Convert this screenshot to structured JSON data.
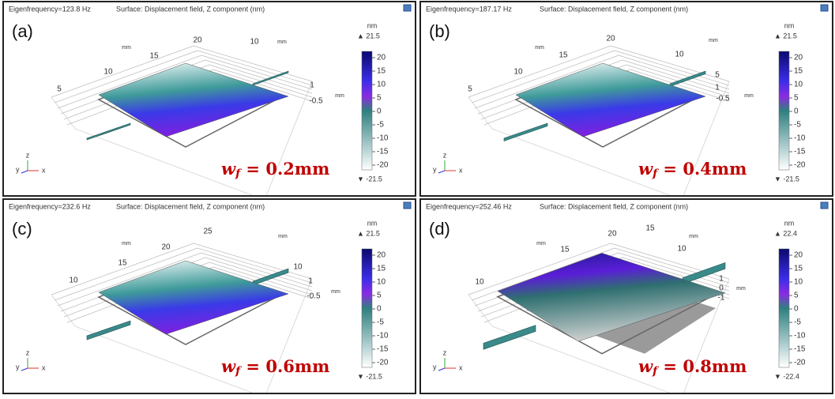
{
  "panels": [
    {
      "label": "(a)",
      "frequency": "Eigenfrequency=123.8 Hz",
      "surface": "Surface: Displacement field, Z component (nm)",
      "unit": "nm",
      "max": "▲ 21.5",
      "min": "▼ -21.5",
      "colorbar_ticks": [
        20,
        15,
        10,
        5,
        0,
        -5,
        -10,
        -15,
        -20
      ],
      "axis_labels": [
        "mm",
        "20",
        "15",
        "10",
        "5",
        "10",
        "mm",
        "1",
        "-0.5",
        "mm"
      ],
      "formula": {
        "var": "w",
        "sub": "f",
        "rest": " = 0.2mm"
      }
    },
    {
      "label": "(b)",
      "frequency": "Eigenfrequency=187.17 Hz",
      "surface": "Surface: Displacement field, Z component (nm)",
      "unit": "nm",
      "max": "▲ 21.5",
      "min": "▼ -21.5",
      "colorbar_ticks": [
        20,
        15,
        10,
        5,
        0,
        -5,
        -10,
        -15,
        -20
      ],
      "axis_labels": [
        "mm",
        "20",
        "15",
        "10",
        "5",
        "10",
        "mm",
        "5",
        "1",
        "-0.5",
        "mm"
      ],
      "formula": {
        "var": "w",
        "sub": "f",
        "rest": " = 0.4mm"
      }
    },
    {
      "label": "(c)",
      "frequency": "Eigenfrequency=232.6 Hz",
      "surface": "Surface: Displacement field, Z component (nm)",
      "unit": "nm",
      "max": "▲ 21.5",
      "min": "▼ -21.5",
      "colorbar_ticks": [
        20,
        15,
        10,
        5,
        0,
        -5,
        -10,
        -15,
        -20
      ],
      "axis_labels": [
        "mm",
        "25",
        "20",
        "15",
        "10",
        "mm",
        "10",
        "1",
        "-0.5",
        "mm"
      ],
      "formula": {
        "var": "w",
        "sub": "f",
        "rest": " = 0.6mm"
      }
    },
    {
      "label": "(d)",
      "frequency": "Eigenfrequency=252.46 Hz",
      "surface": "Surface: Displacement field, Z component (nm)",
      "unit": "nm",
      "max": "▲ 22.4",
      "min": "▼ -22.4",
      "colorbar_ticks": [
        20,
        15,
        10,
        5,
        0,
        -5,
        -10,
        -15,
        -20
      ],
      "axis_labels": [
        "mm",
        "20",
        "15",
        "10",
        "15",
        "mm",
        "10",
        "1",
        "0",
        "-1",
        "mm"
      ],
      "formula": {
        "var": "w",
        "sub": "f",
        "rest": " = 0.8mm"
      }
    }
  ],
  "axis_triad": [
    "z",
    "y",
    "x"
  ]
}
